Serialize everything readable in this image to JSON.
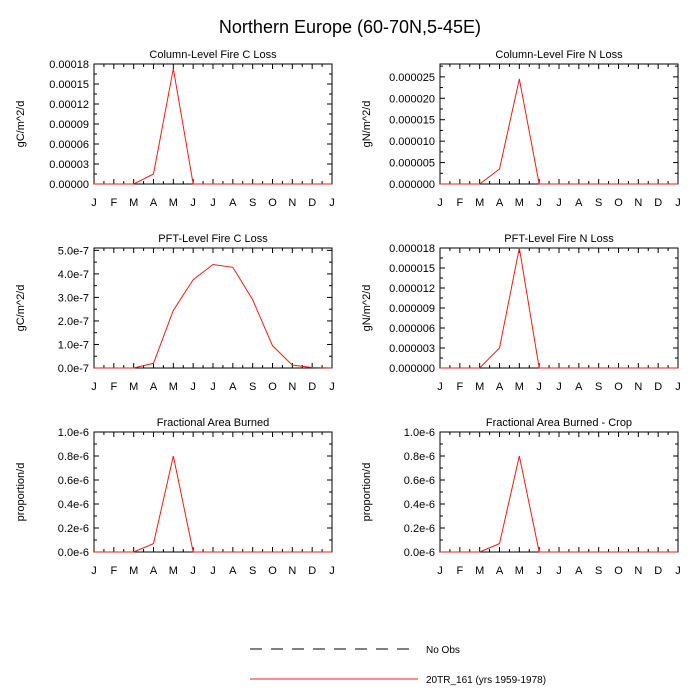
{
  "figure_title": "Northern Europe (60-70N,5-45E)",
  "colors": {
    "series": "#e8201a",
    "axis": "#000000",
    "obs": "#000000"
  },
  "legend": {
    "entries": [
      {
        "label": "No Obs",
        "style": "dashed",
        "color": "#000000"
      },
      {
        "label": "20TR_161 (yrs 1959-1978)",
        "style": "solid",
        "color": "#e8201a"
      }
    ]
  },
  "chart_data": [
    {
      "type": "line",
      "title": "Column-Level Fire C Loss",
      "ylabel": "gC/m^2/d",
      "x": [
        "J",
        "F",
        "M",
        "A",
        "M",
        "J",
        "J",
        "A",
        "S",
        "O",
        "N",
        "D",
        "J"
      ],
      "ylim": [
        0,
        0.00018
      ],
      "yticks": [
        0,
        3e-05,
        6e-05,
        9e-05,
        0.00012,
        0.00015,
        0.00018
      ],
      "ytick_labels": [
        "0.00000",
        "0.00003",
        "0.00006",
        "0.00009",
        "0.00012",
        "0.00015",
        "0.00018"
      ],
      "series": [
        {
          "name": "20TR_161 (yrs 1959-1978)",
          "values": [
            0,
            0,
            0,
            1.5e-05,
            0.000173,
            0,
            0,
            0,
            0,
            0,
            0,
            0,
            0
          ]
        }
      ]
    },
    {
      "type": "line",
      "title": "Column-Level Fire N Loss",
      "ylabel": "gN/m^2/d",
      "x": [
        "J",
        "F",
        "M",
        "A",
        "M",
        "J",
        "J",
        "A",
        "S",
        "O",
        "N",
        "D",
        "J"
      ],
      "ylim": [
        0,
        2.8e-05
      ],
      "yticks": [
        0,
        5e-06,
        1e-05,
        1.5e-05,
        2e-05,
        2.5e-05
      ],
      "ytick_labels": [
        "0.000000",
        "0.000005",
        "0.000010",
        "0.000015",
        "0.000020",
        "0.000025"
      ],
      "series": [
        {
          "name": "20TR_161 (yrs 1959-1978)",
          "values": [
            0,
            0,
            0,
            3.5e-06,
            2.45e-05,
            0,
            0,
            0,
            0,
            0,
            0,
            0,
            0
          ]
        }
      ]
    },
    {
      "type": "line",
      "title": "PFT-Level Fire C Loss",
      "ylabel": "gC/m^2/d",
      "x": [
        "J",
        "F",
        "M",
        "A",
        "M",
        "J",
        "J",
        "A",
        "S",
        "O",
        "N",
        "D",
        "J"
      ],
      "ylim": [
        0,
        5.1e-07
      ],
      "yticks": [
        0,
        1e-07,
        2e-07,
        3e-07,
        4e-07,
        5e-07
      ],
      "ytick_labels": [
        "0.0e-7",
        "1.0e-7",
        "2.0e-7",
        "3.0e-7",
        "4.0e-7",
        "5.0e-7"
      ],
      "series": [
        {
          "name": "20TR_161 (yrs 1959-1978)",
          "values": [
            0,
            0,
            2e-10,
            2e-08,
            2.45e-07,
            3.75e-07,
            4.4e-07,
            4.28e-07,
            2.9e-07,
            9.5e-08,
            1.2e-08,
            2e-09,
            0
          ]
        }
      ]
    },
    {
      "type": "line",
      "title": "PFT-Level Fire N Loss",
      "ylabel": "gN/m^2/d",
      "x": [
        "J",
        "F",
        "M",
        "A",
        "M",
        "J",
        "J",
        "A",
        "S",
        "O",
        "N",
        "D",
        "J"
      ],
      "ylim": [
        0,
        1.8e-05
      ],
      "yticks": [
        0,
        3e-06,
        6e-06,
        9e-06,
        1.2e-05,
        1.5e-05,
        1.8e-05
      ],
      "ytick_labels": [
        "0.000000",
        "0.000003",
        "0.000006",
        "0.000009",
        "0.000012",
        "0.000015",
        "0.000018"
      ],
      "series": [
        {
          "name": "20TR_161 (yrs 1959-1978)",
          "values": [
            0,
            0,
            0,
            3e-06,
            1.8e-05,
            0,
            0,
            0,
            0,
            0,
            0,
            0,
            0
          ]
        }
      ]
    },
    {
      "type": "line",
      "title": "Fractional Area Burned",
      "ylabel": "proportion/d",
      "x": [
        "J",
        "F",
        "M",
        "A",
        "M",
        "J",
        "J",
        "A",
        "S",
        "O",
        "N",
        "D",
        "J"
      ],
      "ylim": [
        0,
        1e-06
      ],
      "yticks": [
        0,
        2e-07,
        4e-07,
        6e-07,
        8e-07,
        1e-06
      ],
      "ytick_labels": [
        "0.0e-6",
        "0.2e-6",
        "0.4e-6",
        "0.6e-6",
        "0.8e-6",
        "1.0e-6"
      ],
      "series": [
        {
          "name": "20TR_161 (yrs 1959-1978)",
          "values": [
            0,
            0,
            0,
            7e-08,
            8e-07,
            0,
            0,
            0,
            0,
            0,
            0,
            0,
            0
          ]
        }
      ]
    },
    {
      "type": "line",
      "title": "Fractional Area Burned - Crop",
      "ylabel": "proportion/d",
      "x": [
        "J",
        "F",
        "M",
        "A",
        "M",
        "J",
        "J",
        "A",
        "S",
        "O",
        "N",
        "D",
        "J"
      ],
      "ylim": [
        0,
        1e-06
      ],
      "yticks": [
        0,
        2e-07,
        4e-07,
        6e-07,
        8e-07,
        1e-06
      ],
      "ytick_labels": [
        "0.0e-6",
        "0.2e-6",
        "0.4e-6",
        "0.6e-6",
        "0.8e-6",
        "1.0e-6"
      ],
      "series": [
        {
          "name": "20TR_161 (yrs 1959-1978)",
          "values": [
            0,
            0,
            0,
            7e-08,
            8e-07,
            0,
            0,
            0,
            0,
            0,
            0,
            0,
            0
          ]
        }
      ]
    }
  ]
}
